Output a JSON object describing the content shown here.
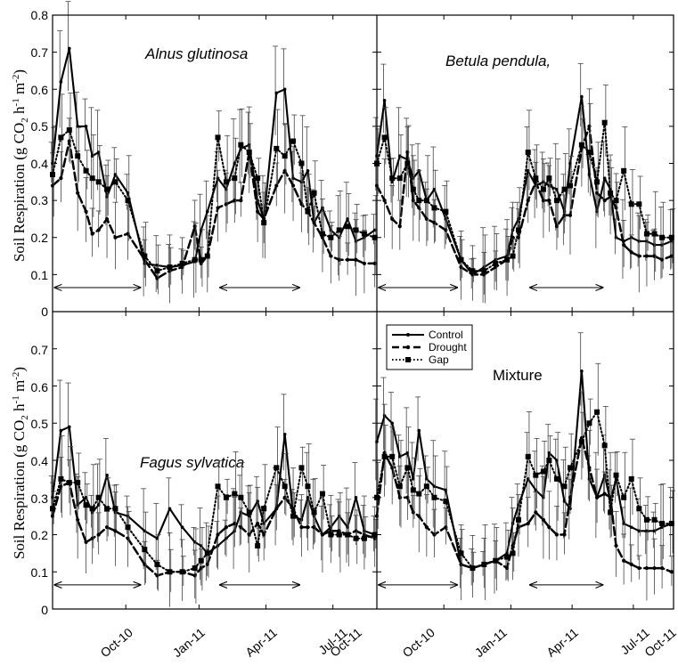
{
  "figure": {
    "ylabel_parts": [
      "Soil Respiration (g CO",
      "2",
      " h",
      "-1",
      " m",
      "-2",
      ")"
    ],
    "y_ticks": [
      "0",
      "0.1",
      "0.2",
      "0.3",
      "0.4",
      "0.5",
      "0.6",
      "0.7",
      "0.8"
    ],
    "x_ticks": [
      "Oct-10",
      "Jan-11",
      "Apr-11",
      "Jul-11",
      "Oct-11"
    ],
    "legend": [
      "Control",
      "Drought",
      "Gap"
    ]
  },
  "chart_data": [
    {
      "type": "line",
      "title": "Alnus glutinosa",
      "title_style": "italic",
      "ylabel": "Soil Respiration (g CO2 h-1 m-2)",
      "ylim": [
        0,
        0.8
      ],
      "x_ticks": [
        "Oct-10",
        "Jan-11",
        "Apr-11",
        "Jul-11",
        "Oct-11"
      ],
      "series": [
        {
          "name": "Control",
          "x": [
            0,
            4,
            8,
            12,
            16,
            19,
            22,
            26,
            30,
            36,
            44,
            50,
            56,
            62,
            68,
            71,
            74,
            79,
            83,
            87,
            90,
            94,
            98,
            101,
            107,
            111,
            115,
            119,
            122,
            125,
            129,
            133,
            137,
            141,
            145,
            149,
            154
          ],
          "y": [
            0.4,
            0.62,
            0.71,
            0.5,
            0.5,
            0.42,
            0.43,
            0.31,
            0.37,
            0.32,
            0.13,
            0.125,
            0.12,
            0.125,
            0.135,
            0.22,
            0.27,
            0.36,
            0.33,
            0.4,
            0.44,
            0.45,
            0.3,
            0.25,
            0.59,
            0.6,
            0.36,
            0.35,
            0.38,
            0.24,
            0.28,
            0.22,
            0.2,
            0.25,
            0.19,
            0.2,
            0.22
          ]
        },
        {
          "name": "Drought",
          "x": [
            0,
            4,
            8,
            12,
            16,
            19,
            22,
            26,
            30,
            36,
            44,
            50,
            56,
            62,
            68,
            71,
            74,
            79,
            83,
            87,
            90,
            94,
            98,
            101,
            107,
            111,
            115,
            119,
            122,
            125,
            129,
            133,
            137,
            141,
            145,
            149,
            154
          ],
          "y": [
            0.34,
            0.36,
            0.46,
            0.32,
            0.27,
            0.21,
            0.22,
            0.25,
            0.2,
            0.21,
            0.14,
            0.09,
            0.11,
            0.12,
            0.23,
            0.13,
            0.15,
            0.28,
            0.29,
            0.3,
            0.3,
            0.43,
            0.27,
            0.25,
            0.34,
            0.38,
            0.34,
            0.29,
            0.27,
            0.24,
            0.2,
            0.15,
            0.14,
            0.14,
            0.14,
            0.13,
            0.13
          ]
        },
        {
          "name": "Gap",
          "x": [
            0,
            4,
            8,
            12,
            16,
            19,
            22,
            26,
            30,
            36,
            44,
            50,
            56,
            62,
            68,
            71,
            74,
            79,
            83,
            87,
            90,
            94,
            98,
            101,
            107,
            111,
            115,
            119,
            122,
            125,
            129,
            133,
            137,
            141,
            145,
            149,
            154
          ],
          "y": [
            0.37,
            0.47,
            0.49,
            0.42,
            0.38,
            0.36,
            0.35,
            0.33,
            0.35,
            0.3,
            0.15,
            0.11,
            0.12,
            0.13,
            0.14,
            0.14,
            0.15,
            0.47,
            0.35,
            0.36,
            0.45,
            0.43,
            0.36,
            0.24,
            0.44,
            0.42,
            0.46,
            0.4,
            0.27,
            0.32,
            0.21,
            0.2,
            0.22,
            0.23,
            0.22,
            0.21,
            0.2
          ]
        }
      ]
    },
    {
      "type": "line",
      "title": "Betula pendula,",
      "title_style": "italic",
      "ylim": [
        0,
        0.8
      ],
      "x_ticks": [
        "Oct-10",
        "Jan-11",
        "Apr-11",
        "Jul-11",
        "Oct-11"
      ],
      "series": [
        {
          "name": "Control",
          "x": [
            0,
            4,
            8,
            12,
            16,
            19,
            22,
            26,
            30,
            36,
            44,
            50,
            56,
            62,
            68,
            71,
            74,
            79,
            83,
            87,
            90,
            94,
            98,
            101,
            107,
            111,
            115,
            119,
            122,
            125,
            129,
            133,
            137,
            141,
            145,
            149,
            154
          ],
          "y": [
            0.42,
            0.57,
            0.35,
            0.42,
            0.41,
            0.36,
            0.38,
            0.3,
            0.33,
            0.25,
            0.14,
            0.1,
            0.12,
            0.14,
            0.15,
            0.22,
            0.25,
            0.38,
            0.34,
            0.35,
            0.34,
            0.33,
            0.27,
            0.4,
            0.58,
            0.37,
            0.27,
            0.36,
            0.33,
            0.2,
            0.19,
            0.2,
            0.19,
            0.19,
            0.18,
            0.18,
            0.19
          ]
        },
        {
          "name": "Drought",
          "x": [
            0,
            4,
            8,
            12,
            16,
            19,
            22,
            26,
            30,
            36,
            44,
            50,
            56,
            62,
            68,
            71,
            74,
            79,
            83,
            87,
            90,
            94,
            98,
            101,
            107,
            111,
            115,
            119,
            122,
            125,
            129,
            133,
            137,
            141,
            145,
            149,
            154
          ],
          "y": [
            0.34,
            0.3,
            0.25,
            0.23,
            0.43,
            0.3,
            0.28,
            0.25,
            0.24,
            0.22,
            0.12,
            0.1,
            0.1,
            0.12,
            0.14,
            0.2,
            0.2,
            0.3,
            0.35,
            0.3,
            0.3,
            0.23,
            0.26,
            0.26,
            0.44,
            0.5,
            0.32,
            0.3,
            0.31,
            0.28,
            0.18,
            0.16,
            0.15,
            0.15,
            0.15,
            0.14,
            0.15
          ]
        },
        {
          "name": "Gap",
          "x": [
            0,
            4,
            8,
            12,
            16,
            19,
            22,
            26,
            30,
            36,
            44,
            50,
            56,
            62,
            68,
            71,
            74,
            79,
            83,
            87,
            90,
            94,
            98,
            101,
            107,
            111,
            115,
            119,
            122,
            125,
            129,
            133,
            137,
            141,
            145,
            149,
            154
          ],
          "y": [
            0.4,
            0.47,
            0.36,
            0.36,
            0.4,
            0.33,
            0.3,
            0.3,
            0.28,
            0.27,
            0.14,
            0.11,
            0.11,
            0.13,
            0.14,
            0.15,
            0.22,
            0.43,
            0.36,
            0.33,
            0.36,
            0.3,
            0.33,
            0.34,
            0.45,
            0.43,
            0.35,
            0.51,
            0.32,
            0.3,
            0.38,
            0.29,
            0.29,
            0.21,
            0.21,
            0.2,
            0.2
          ]
        }
      ]
    },
    {
      "type": "line",
      "title": "Fagus sylvatica",
      "title_style": "italic",
      "ylabel": "Soil Respiration (g CO2 h-1 m-2)",
      "ylim": [
        0,
        0.8
      ],
      "x_ticks": [
        "Oct-10",
        "Jan-11",
        "Apr-11",
        "Jul-11",
        "Oct-11"
      ],
      "series": [
        {
          "name": "Control",
          "x": [
            0,
            4,
            8,
            12,
            16,
            19,
            22,
            26,
            30,
            36,
            44,
            50,
            56,
            62,
            68,
            71,
            74,
            79,
            83,
            87,
            90,
            94,
            98,
            101,
            107,
            111,
            115,
            119,
            122,
            125,
            129,
            133,
            137,
            141,
            145,
            149,
            154
          ],
          "y": [
            0.3,
            0.48,
            0.49,
            0.28,
            0.3,
            0.26,
            0.28,
            0.36,
            0.26,
            0.25,
            0.21,
            0.19,
            0.27,
            0.22,
            0.18,
            0.17,
            0.15,
            0.17,
            0.19,
            0.21,
            0.26,
            0.25,
            0.29,
            0.23,
            0.27,
            0.47,
            0.25,
            0.24,
            0.3,
            0.25,
            0.2,
            0.22,
            0.25,
            0.22,
            0.3,
            0.21,
            0.2
          ]
        },
        {
          "name": "Drought",
          "x": [
            0,
            4,
            8,
            12,
            16,
            19,
            22,
            26,
            30,
            36,
            44,
            50,
            56,
            62,
            68,
            71,
            74,
            79,
            83,
            87,
            90,
            94,
            98,
            101,
            107,
            111,
            115,
            119,
            122,
            125,
            129,
            133,
            137,
            141,
            145,
            149,
            154
          ],
          "y": [
            0.25,
            0.33,
            0.34,
            0.24,
            0.18,
            0.19,
            0.2,
            0.22,
            0.21,
            0.19,
            0.12,
            0.09,
            0.1,
            0.1,
            0.09,
            0.11,
            0.12,
            0.2,
            0.22,
            0.23,
            0.22,
            0.2,
            0.23,
            0.2,
            0.27,
            0.3,
            0.27,
            0.22,
            0.22,
            0.22,
            0.2,
            0.21,
            0.21,
            0.2,
            0.21,
            0.2,
            0.19
          ]
        },
        {
          "name": "Gap",
          "x": [
            0,
            4,
            8,
            12,
            16,
            19,
            22,
            26,
            30,
            36,
            44,
            50,
            56,
            62,
            68,
            71,
            74,
            79,
            83,
            87,
            90,
            94,
            98,
            101,
            107,
            111,
            115,
            119,
            122,
            125,
            129,
            133,
            137,
            141,
            145,
            149,
            154
          ],
          "y": [
            0.27,
            0.35,
            0.34,
            0.34,
            0.28,
            0.27,
            0.3,
            0.27,
            0.27,
            0.22,
            0.16,
            0.12,
            0.1,
            0.1,
            0.11,
            0.13,
            0.15,
            0.33,
            0.3,
            0.31,
            0.3,
            0.26,
            0.17,
            0.27,
            0.38,
            0.33,
            0.25,
            0.38,
            0.33,
            0.26,
            0.31,
            0.2,
            0.2,
            0.2,
            0.19,
            0.19,
            0.2
          ]
        }
      ]
    },
    {
      "type": "line",
      "title": "Mixture",
      "title_style": "normal",
      "ylim": [
        0,
        0.8
      ],
      "x_ticks": [
        "Oct-10",
        "Jan-11",
        "Apr-11",
        "Jul-11",
        "Oct-11"
      ],
      "legend": "top-left",
      "series": [
        {
          "name": "Control",
          "x": [
            0,
            4,
            8,
            12,
            16,
            19,
            22,
            26,
            30,
            36,
            44,
            50,
            56,
            62,
            68,
            71,
            74,
            79,
            83,
            87,
            90,
            94,
            98,
            101,
            107,
            111,
            115,
            119,
            122,
            125,
            129,
            133,
            137,
            141,
            145,
            149,
            154
          ],
          "y": [
            0.45,
            0.52,
            0.5,
            0.41,
            0.42,
            0.35,
            0.48,
            0.35,
            0.33,
            0.32,
            0.12,
            0.11,
            0.12,
            0.13,
            0.15,
            0.23,
            0.28,
            0.35,
            0.32,
            0.3,
            0.42,
            0.4,
            0.29,
            0.27,
            0.64,
            0.35,
            0.3,
            0.36,
            0.29,
            0.35,
            0.23,
            0.22,
            0.21,
            0.21,
            0.21,
            0.22,
            0.23
          ]
        },
        {
          "name": "Drought",
          "x": [
            0,
            4,
            8,
            12,
            16,
            19,
            22,
            26,
            30,
            36,
            44,
            50,
            56,
            62,
            68,
            71,
            74,
            79,
            83,
            87,
            90,
            94,
            98,
            101,
            107,
            111,
            115,
            119,
            122,
            125,
            129,
            133,
            137,
            141,
            145,
            149,
            154
          ],
          "y": [
            0.25,
            0.42,
            0.38,
            0.3,
            0.3,
            0.26,
            0.25,
            0.22,
            0.2,
            0.22,
            0.12,
            0.11,
            0.12,
            0.13,
            0.11,
            0.17,
            0.22,
            0.23,
            0.26,
            0.24,
            0.22,
            0.2,
            0.2,
            0.3,
            0.46,
            0.38,
            0.3,
            0.31,
            0.3,
            0.17,
            0.13,
            0.12,
            0.11,
            0.11,
            0.11,
            0.11,
            0.1
          ]
        },
        {
          "name": "Gap",
          "x": [
            0,
            4,
            8,
            12,
            16,
            19,
            22,
            26,
            30,
            36,
            44,
            50,
            56,
            62,
            68,
            71,
            74,
            79,
            83,
            87,
            90,
            94,
            98,
            101,
            107,
            111,
            115,
            119,
            122,
            125,
            129,
            133,
            137,
            141,
            145,
            149,
            154
          ],
          "y": [
            0.3,
            0.41,
            0.41,
            0.33,
            0.38,
            0.32,
            0.31,
            0.33,
            0.3,
            0.29,
            0.15,
            0.11,
            0.12,
            0.13,
            0.14,
            0.15,
            0.24,
            0.41,
            0.36,
            0.37,
            0.4,
            0.35,
            0.33,
            0.38,
            0.45,
            0.5,
            0.53,
            0.44,
            0.26,
            0.36,
            0.3,
            0.35,
            0.27,
            0.24,
            0.24,
            0.23,
            0.23
          ]
        }
      ]
    }
  ]
}
